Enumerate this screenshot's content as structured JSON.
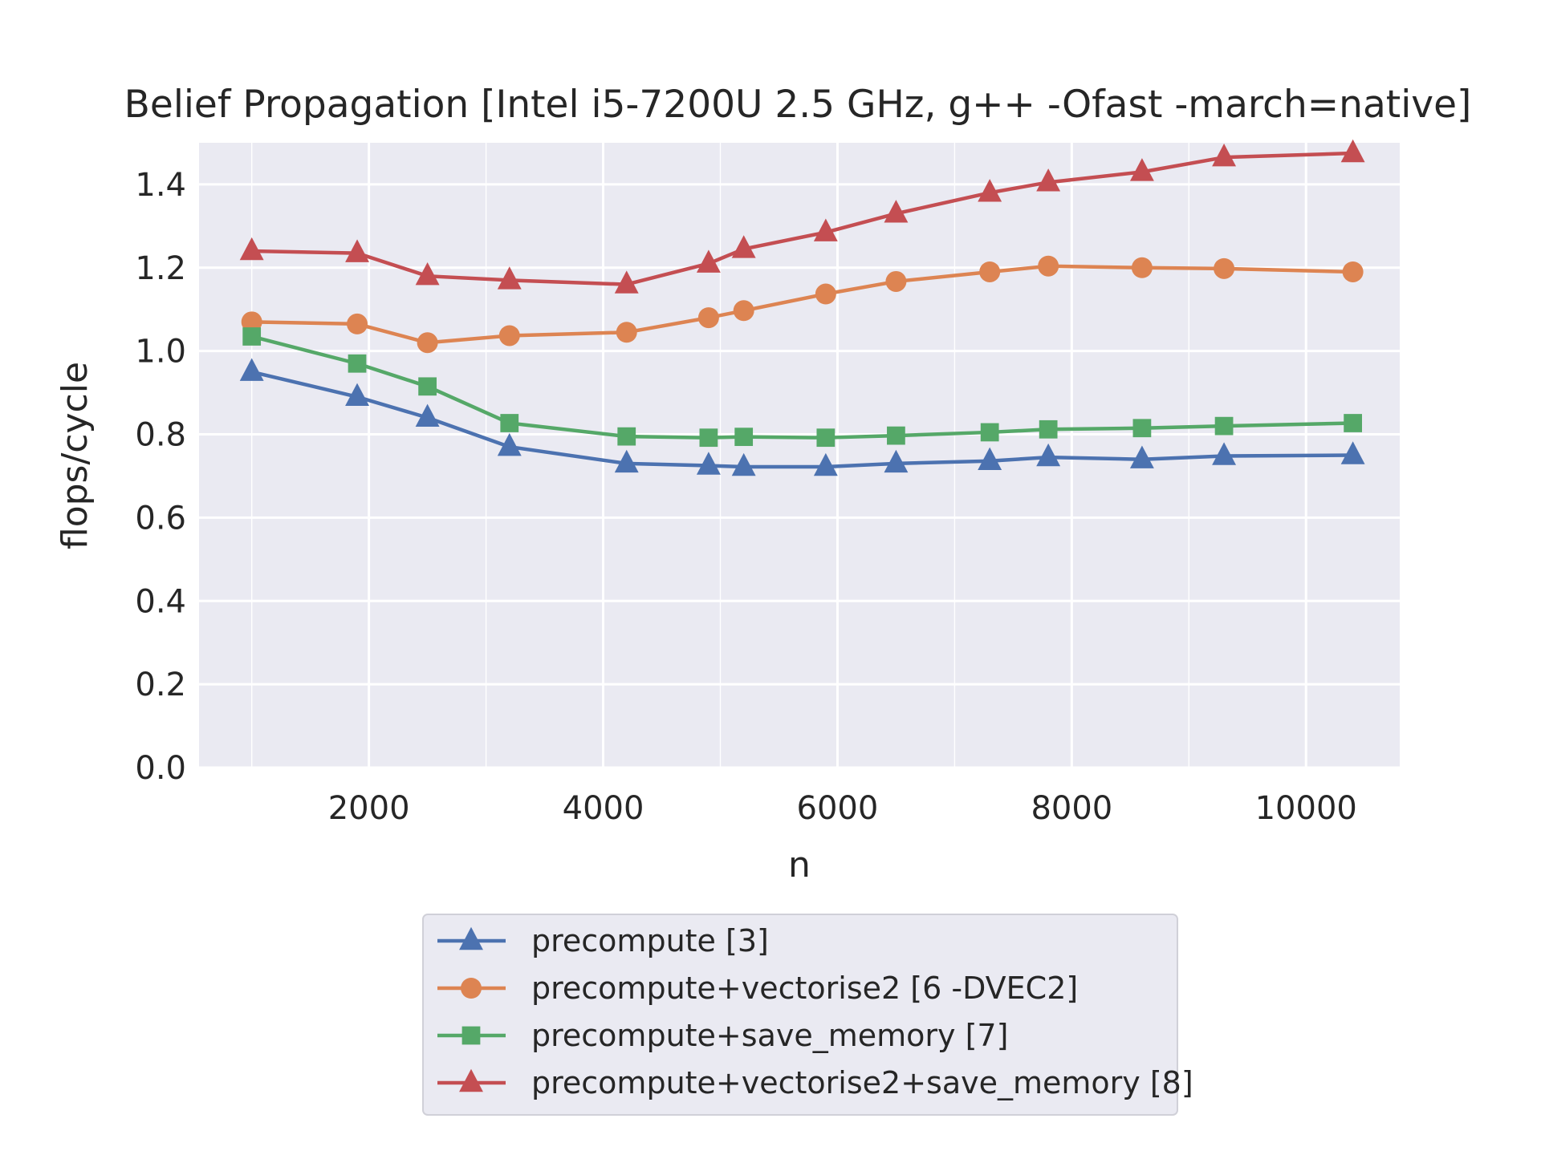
{
  "chart_data": {
    "type": "line",
    "title": "Belief Propagation [Intel i5-7200U 2.5 GHz, g++ -Ofast -march=native]",
    "xlabel": "n",
    "ylabel": "flops/cycle",
    "xlim": [
      550,
      10800
    ],
    "ylim": [
      0.0,
      1.5
    ],
    "xticks": [
      2000,
      4000,
      6000,
      8000,
      10000
    ],
    "yticks": [
      0.0,
      0.2,
      0.4,
      0.6,
      0.8,
      1.0,
      1.2,
      1.4
    ],
    "grid": true,
    "legend_position": "bottom-center, outside plot",
    "x": [
      1000,
      1900,
      2500,
      3200,
      4200,
      4900,
      5200,
      5900,
      6500,
      7300,
      7800,
      8600,
      9300,
      10400
    ],
    "series": [
      {
        "name": "precompute [3]",
        "color": "#4C72B0",
        "marker": "triangle",
        "values": [
          0.95,
          0.89,
          0.84,
          0.77,
          0.73,
          0.725,
          0.722,
          0.722,
          0.73,
          0.736,
          0.745,
          0.74,
          0.748,
          0.75
        ]
      },
      {
        "name": "precompute+vectorise2 [6 -DVEC2]",
        "color": "#DD8452",
        "marker": "circle",
        "values": [
          1.07,
          1.065,
          1.02,
          1.037,
          1.045,
          1.08,
          1.097,
          1.137,
          1.167,
          1.19,
          1.204,
          1.2,
          1.198,
          1.19
        ]
      },
      {
        "name": "precompute+save_memory [7]",
        "color": "#55A868",
        "marker": "square",
        "values": [
          1.035,
          0.97,
          0.915,
          0.827,
          0.795,
          0.792,
          0.794,
          0.792,
          0.797,
          0.805,
          0.812,
          0.815,
          0.82,
          0.827
        ]
      },
      {
        "name": "precompute+vectorise2+save_memory [8]",
        "color": "#C44E52",
        "marker": "triangle",
        "values": [
          1.24,
          1.235,
          1.18,
          1.17,
          1.16,
          1.21,
          1.245,
          1.285,
          1.33,
          1.38,
          1.405,
          1.43,
          1.465,
          1.475
        ]
      }
    ]
  }
}
